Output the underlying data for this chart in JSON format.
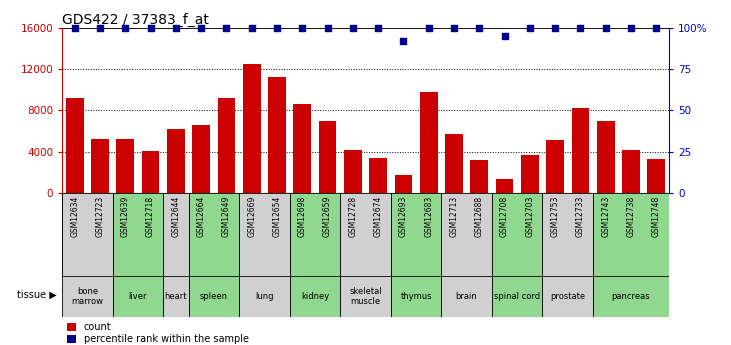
{
  "title": "GDS422 / 37383_f_at",
  "samples": [
    "GSM12634",
    "GSM12723",
    "GSM12639",
    "GSM12718",
    "GSM12644",
    "GSM12664",
    "GSM12649",
    "GSM12669",
    "GSM12654",
    "GSM12698",
    "GSM12659",
    "GSM12728",
    "GSM12674",
    "GSM12693",
    "GSM12683",
    "GSM12713",
    "GSM12688",
    "GSM12708",
    "GSM12703",
    "GSM12753",
    "GSM12733",
    "GSM12743",
    "GSM12738",
    "GSM12748"
  ],
  "counts": [
    9200,
    5200,
    5200,
    4100,
    6200,
    6600,
    9200,
    12500,
    11200,
    8600,
    7000,
    4200,
    3400,
    1800,
    9800,
    5700,
    3200,
    1400,
    3700,
    5100,
    8200,
    7000,
    4200,
    3300
  ],
  "percentile_ranks": [
    100,
    100,
    100,
    100,
    100,
    100,
    100,
    100,
    100,
    100,
    100,
    100,
    100,
    92,
    100,
    100,
    100,
    95,
    100,
    100,
    100,
    100,
    100,
    100
  ],
  "tissues": [
    {
      "name": "bone\nmarrow",
      "start": 0,
      "end": 2,
      "color": "#d0d0d0"
    },
    {
      "name": "liver",
      "start": 2,
      "end": 4,
      "color": "#90d890"
    },
    {
      "name": "heart",
      "start": 4,
      "end": 5,
      "color": "#d0d0d0"
    },
    {
      "name": "spleen",
      "start": 5,
      "end": 7,
      "color": "#90d890"
    },
    {
      "name": "lung",
      "start": 7,
      "end": 9,
      "color": "#d0d0d0"
    },
    {
      "name": "kidney",
      "start": 9,
      "end": 11,
      "color": "#90d890"
    },
    {
      "name": "skeletal\nmuscle",
      "start": 11,
      "end": 13,
      "color": "#d0d0d0"
    },
    {
      "name": "thymus",
      "start": 13,
      "end": 15,
      "color": "#90d890"
    },
    {
      "name": "brain",
      "start": 15,
      "end": 17,
      "color": "#d0d0d0"
    },
    {
      "name": "spinal cord",
      "start": 17,
      "end": 19,
      "color": "#90d890"
    },
    {
      "name": "prostate",
      "start": 19,
      "end": 21,
      "color": "#d0d0d0"
    },
    {
      "name": "pancreas",
      "start": 21,
      "end": 24,
      "color": "#90d890"
    }
  ],
  "bar_color": "#cc0000",
  "dot_color": "#00008b",
  "ylim_left": [
    0,
    16000
  ],
  "ylim_right": [
    0,
    100
  ],
  "yticks_left": [
    0,
    4000,
    8000,
    12000,
    16000
  ],
  "yticks_right": [
    0,
    25,
    50,
    75,
    100
  ],
  "left_color": "#cc0000",
  "right_color": "#0000cc",
  "bg_sample_row": "#c8c8c8",
  "fig_width": 7.31,
  "fig_height": 3.45
}
